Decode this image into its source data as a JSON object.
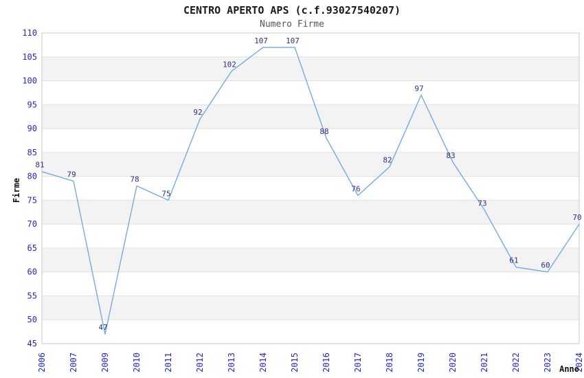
{
  "chart_data": {
    "type": "line",
    "title": "CENTRO APERTO APS (c.f.93027540207)",
    "subtitle": "Numero Firme",
    "xlabel": "Anno",
    "ylabel": "Firme",
    "categories": [
      "2006",
      "2007",
      "2009",
      "2010",
      "2011",
      "2012",
      "2013",
      "2014",
      "2015",
      "2016",
      "2017",
      "2018",
      "2019",
      "2020",
      "2021",
      "2022",
      "2023",
      "2024"
    ],
    "values": [
      81,
      79,
      47,
      78,
      75,
      92,
      102,
      107,
      107,
      88,
      76,
      82,
      97,
      83,
      73,
      61,
      60,
      70
    ],
    "ylim": [
      45,
      110
    ],
    "ytick_step": 5,
    "yticks": [
      45,
      50,
      55,
      60,
      65,
      70,
      75,
      80,
      85,
      90,
      95,
      100,
      105,
      110
    ],
    "grid": true,
    "legend": "none",
    "layout": {
      "bands_alternating": true,
      "x_labels_rotated_90": true,
      "value_labels_shown": true
    },
    "colors": {
      "line": "#74aae2",
      "value_label": "#2e2e80",
      "tick_label": "#2626cc",
      "axis_title": "#111111",
      "title": "#1a1a1a",
      "subtitle": "#555555",
      "plot_border": "#c8c8c8",
      "gridline": "#e2e2e2",
      "band": "#f3f3f3",
      "background": "#ffffff"
    }
  }
}
